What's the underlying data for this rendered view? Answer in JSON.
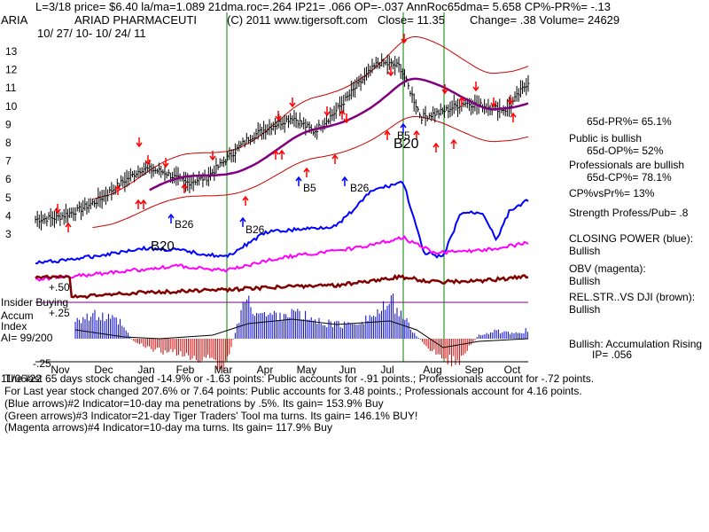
{
  "header": {
    "line1": "L=3/18  price= $6.40  la/ma=1.089 21dma.roc=.264 IP21= .066 OP=-.037 AnnRoc65dma= 5.658 CP%-PR%= -.13",
    "symbol": "ARIA",
    "company": "ARIAD PHARMACEUTI",
    "copyright": "(C) 2011 www.tigersoft.com",
    "close": "Close=  11.35",
    "change": "Change= .38 Volume= 24629",
    "dates": "10/ 27/ 10-  10/ 24/ 11"
  },
  "side_panel": {
    "pr": "65d-PR%= 65.1%",
    "public_status": "Public is bullish",
    "op": "65d-OP%= 52%",
    "professionals_status": "Professionals are bullish",
    "cp": "65d-CP%= 78.1%",
    "cpvspr": "CP%vsPr%=  13%",
    "strength": "Strength Profess/Pub= .8",
    "closing_power_label": "CLOSING POWER (blue):",
    "closing_power_value": "Bullish",
    "obv_label": "OBV (magenta):",
    "obv_value": "Bullish",
    "relstr_label": "REL.STR..VS DJI (brown):",
    "relstr_value": "Bullish",
    "accum_label": "Bullish: Accumulation Rising",
    "ip": "IP=  .056"
  },
  "panel_labels": {
    "insider_buying": "Insider Buying",
    "accum": "Accum",
    "index": "Index",
    "ai": "AI= 99/200",
    "plus50": "+.50",
    "plus25": "+.25",
    "minus25": "-.25"
  },
  "annotations": {
    "b20_top": "B20",
    "b5_top": "B5",
    "b5_mid": "B5",
    "b26_mid": "B26",
    "b26_low": "B26",
    "b26_low2": "B26",
    "b20_low": "B20"
  },
  "footer": {
    "line1": "The last 65 days stock changed -14.9% or -1.63 points:  Public accounts for -.91 points.;  Professionals account for -.72 points.",
    "line2": "For Last year stock changed  207.6% or  7.64 points:  Public accounts for  3.48 points.;  Professionals account for  4.16 points.",
    "line3": "(Blue arrows)#2 Indicator=10-day ma penetrations by .5%. Its gain= 153.9% Buy",
    "line4": "(Green arrows)#3 Indicator=21-day Tiger Traders' Tool ma turns. Its gain= 146.1% BUY!",
    "line5": "(Magenta arrows)#4 Indicator=10-day ma turns. Its gain= 117.9% Buy",
    "overlap": "11/06/22"
  },
  "colors": {
    "price_bars": "#000000",
    "bands": "#cc0000",
    "ma_purple": "#800080",
    "closing_power": "#0000ff",
    "obv": "#ff00ff",
    "relstr": "#800000",
    "vlines": "#008000",
    "accum_up": "#0000cc",
    "accum_down": "#cc0000",
    "arrow_red": "#ff0000",
    "arrow_blue": "#0000ff"
  },
  "chart_data": {
    "type": "line",
    "title": "ARIAD PHARMACEUTI",
    "x_tick_labels": [
      "Nov",
      "Dec",
      "Jan",
      "Feb",
      "Mar",
      "Apr",
      "May",
      "Jun",
      "Jul",
      "Aug",
      "Sep",
      "Oct"
    ],
    "y_tick_labels": [
      "3",
      "4",
      "5",
      "6",
      "7",
      "8",
      "9",
      "10",
      "11",
      "12",
      "13"
    ],
    "ylim": [
      2.5,
      14
    ],
    "price_close": [
      3.8,
      3.9,
      4.3,
      4.9,
      5.8,
      6.6,
      6.4,
      5.8,
      6.1,
      7.2,
      8.3,
      8.9,
      9.4,
      8.6,
      9.7,
      11.1,
      12.4,
      12.2,
      9.4,
      9.7,
      10.2,
      10.0,
      9.8,
      11.35
    ],
    "series": [
      {
        "name": "CLOSING POWER (blue)"
      },
      {
        "name": "OBV (magenta)"
      },
      {
        "name": "REL.STR..VS DJI (brown)"
      }
    ]
  }
}
